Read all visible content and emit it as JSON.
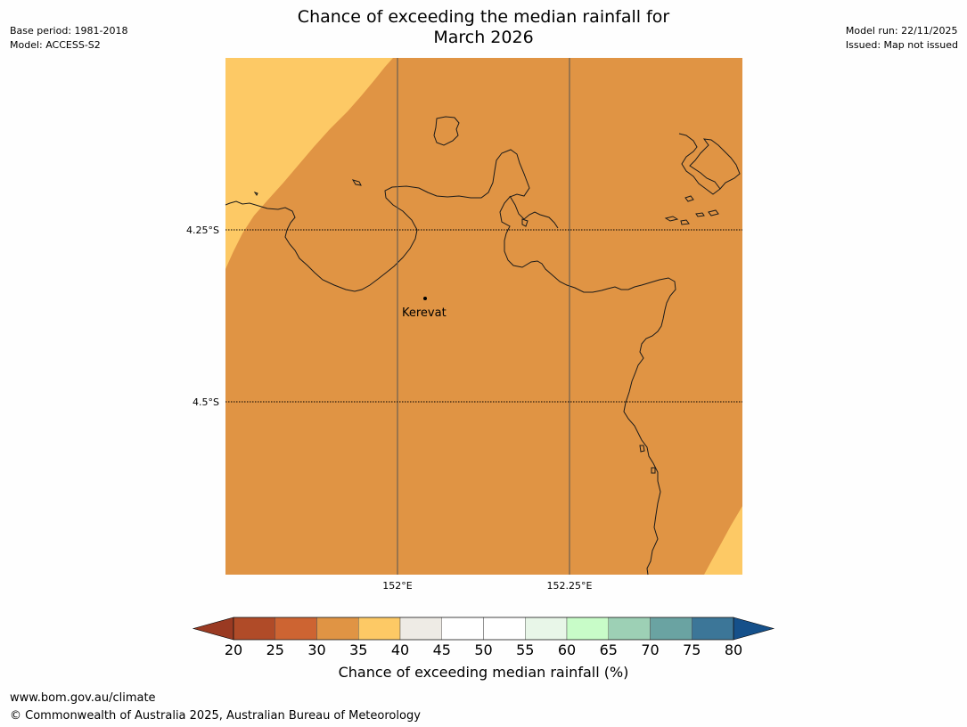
{
  "title": {
    "line1": "Chance of exceeding the median rainfall for",
    "line2": "March 2026"
  },
  "meta_left": {
    "base_period": "Base period: 1981-2018",
    "model": "Model: ACCESS-S2"
  },
  "meta_right": {
    "model_run": "Model run: 22/11/2025",
    "issued": "Issued: Map not issued"
  },
  "map": {
    "place_label": "Kerevat",
    "lat_labels": [
      "4.25°S",
      "4.5°S"
    ],
    "lon_labels": [
      "152°E",
      "152.25°E"
    ],
    "colors": {
      "main_fill": "#e09444",
      "light_fill": "#fdc965",
      "coast": "#1a1a1a"
    }
  },
  "colorbar": {
    "title": "Chance of exceeding median rainfall (%)",
    "ticks": [
      "20",
      "25",
      "30",
      "35",
      "40",
      "45",
      "50",
      "55",
      "60",
      "65",
      "70",
      "75",
      "80"
    ],
    "colors": [
      "#b04b28",
      "#cd6432",
      "#e09444",
      "#fdc965",
      "#eeebe5",
      "#ffffff",
      "#ffffff",
      "#e8f6e8",
      "#c8fcc8",
      "#9dd0b5",
      "#6aa3a2",
      "#3c7698"
    ],
    "extend_low_color": "#9a3a22",
    "extend_high_color": "#15508a"
  },
  "footer": {
    "url": "www.bom.gov.au/climate",
    "copyright": "© Commonwealth of Australia 2025, Australian Bureau of Meteorology"
  }
}
